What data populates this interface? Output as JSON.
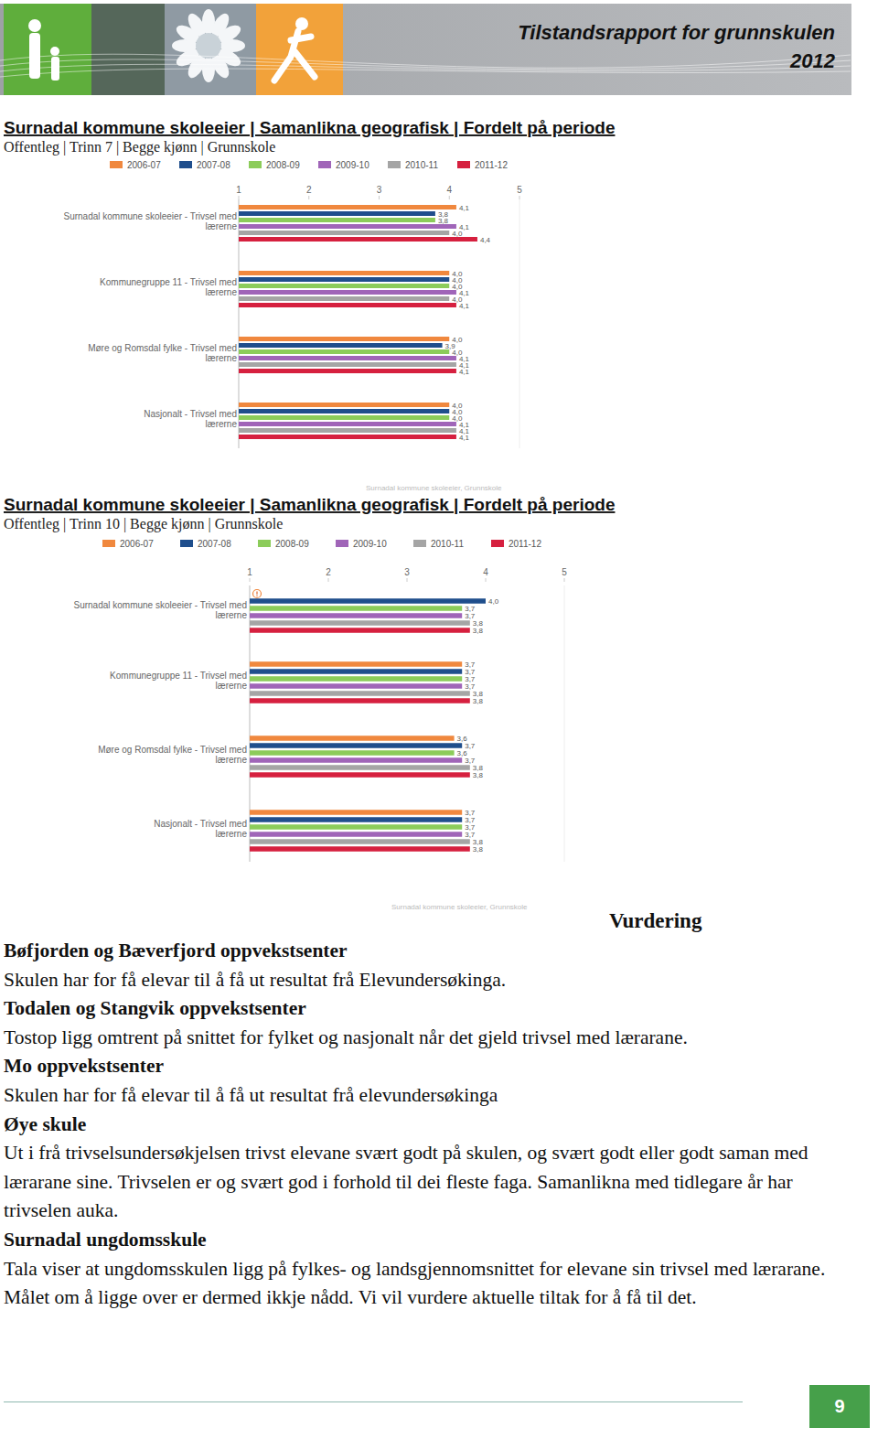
{
  "header": {
    "title": "Tilstandsrapport for grunnskulen",
    "year": "2012"
  },
  "chart_data": [
    {
      "type": "bar",
      "orientation": "horizontal",
      "data_labels": true,
      "grid": false,
      "title": "Surnadal kommune skoleeier | Samanlikna geografisk | Fordelt på periode",
      "subtitle": "Offentleg | Trinn 7 | Begge kjønn | Grunnskole",
      "caption": "Surnadal kommune skoleeier, Grunnskole",
      "categories": [
        "Surnadal kommune skoleeier - Trivsel med lærerne",
        "Kommunegruppe 11 - Trivsel med lærerne",
        "Møre og Romsdal fylke - Trivsel med lærerne",
        "Nasjonalt - Trivsel med lærerne"
      ],
      "xlim": [
        1,
        5
      ],
      "xticks": [
        1,
        2,
        3,
        4,
        5
      ],
      "series": [
        {
          "name": "2006-07",
          "color": "#f0883e",
          "values": [
            4.1,
            4.0,
            4.0,
            4.0
          ],
          "value_labels": [
            "4,1",
            "4,0",
            "4,0",
            "4,0"
          ]
        },
        {
          "name": "2007-08",
          "color": "#1f4e8c",
          "values": [
            3.8,
            4.0,
            3.9,
            4.0
          ],
          "value_labels": [
            "3,8",
            "4,0",
            "3,9",
            "4,0"
          ]
        },
        {
          "name": "2008-09",
          "color": "#8ccc5a",
          "values": [
            3.8,
            4.0,
            4.0,
            4.0
          ],
          "value_labels": [
            "3,8",
            "4,0",
            "4,0",
            "4,0"
          ]
        },
        {
          "name": "2009-10",
          "color": "#a065b8",
          "values": [
            4.1,
            4.1,
            4.1,
            4.1
          ],
          "value_labels": [
            "4,1",
            "4,1",
            "4,1",
            "4,1"
          ]
        },
        {
          "name": "2010-11",
          "color": "#a5a5a5",
          "values": [
            4.0,
            4.0,
            4.1,
            4.1
          ],
          "value_labels": [
            "4,0",
            "4,0",
            "4,1",
            "4,1"
          ]
        },
        {
          "name": "2011-12",
          "color": "#d6203f",
          "values": [
            4.4,
            4.1,
            4.1,
            4.1
          ],
          "value_labels": [
            "4,4",
            "4,1",
            "4,1",
            "4,1"
          ]
        }
      ]
    },
    {
      "type": "bar",
      "orientation": "horizontal",
      "data_labels": true,
      "grid": false,
      "title": "Surnadal kommune skoleeier | Samanlikna geografisk | Fordelt på periode",
      "subtitle": "Offentleg | Trinn 10 | Begge kjønn | Grunnskole",
      "caption": "Surnadal kommune skoleeier, Grunnskole",
      "categories": [
        "Surnadal kommune skoleeier - Trivsel med lærerne",
        "Kommunegruppe 11 - Trivsel med lærerne",
        "Møre og Romsdal fylke - Trivsel med lærerne",
        "Nasjonalt - Trivsel med lærerne"
      ],
      "xlim": [
        1,
        5
      ],
      "xticks": [
        1,
        2,
        3,
        4,
        5
      ],
      "series": [
        {
          "name": "2006-07",
          "color": "#f0883e",
          "values": [
            null,
            3.7,
            3.6,
            3.7
          ],
          "value_labels": [
            null,
            "3,7",
            "3,6",
            "3,7"
          ]
        },
        {
          "name": "2007-08",
          "color": "#1f4e8c",
          "values": [
            4.0,
            3.7,
            3.7,
            3.7
          ],
          "value_labels": [
            "4,0",
            "3,7",
            "3,7",
            "3,7"
          ]
        },
        {
          "name": "2008-09",
          "color": "#8ccc5a",
          "values": [
            3.7,
            3.7,
            3.6,
            3.7
          ],
          "value_labels": [
            "3,7",
            "3,7",
            "3,6",
            "3,7"
          ]
        },
        {
          "name": "2009-10",
          "color": "#a065b8",
          "values": [
            3.7,
            3.7,
            3.7,
            3.7
          ],
          "value_labels": [
            "3,7",
            "3,7",
            "3,7",
            "3,7"
          ]
        },
        {
          "name": "2010-11",
          "color": "#a5a5a5",
          "values": [
            3.8,
            3.8,
            3.8,
            3.8
          ],
          "value_labels": [
            "3,8",
            "3,8",
            "3,8",
            "3,8"
          ]
        },
        {
          "name": "2011-12",
          "color": "#d6203f",
          "values": [
            3.8,
            3.8,
            3.8,
            3.8
          ],
          "value_labels": [
            "3,8",
            "3,8",
            "3,8",
            "3,8"
          ]
        }
      ]
    }
  ],
  "assessment": {
    "title": "Vurdering",
    "sections": [
      {
        "heading": "Bøfjorden og Bæverfjord oppvekstsenter",
        "text": "Skulen har for få elevar til å få ut resultat frå Elevundersøkinga."
      },
      {
        "heading": "Todalen og Stangvik oppvekstsenter",
        "text": "Tostop ligg omtrent på snittet for fylket og nasjonalt når det gjeld trivsel med lærarane."
      },
      {
        "heading": "Mo oppvekstsenter",
        "text": "Skulen har for få elevar til å få ut resultat frå elevundersøkinga"
      },
      {
        "heading": "Øye skule",
        "text": "Ut i frå trivselsundersøkjelsen trivst elevane svært godt på skulen, og svært godt eller godt saman med lærarane sine. Trivselen er og svært god i forhold til dei fleste faga. Samanlikna med tidlegare år har trivselen auka."
      },
      {
        "heading": "Surnadal ungdomsskule",
        "text": "Tala viser at ungdomsskulen ligg på fylkes- og landsgjennomsnittet for elevane sin trivsel med lærarane. Målet om å ligge over er dermed ikkje nådd. Vi vil vurdere aktuelle tiltak for å få til det."
      }
    ]
  },
  "page_number": "9"
}
